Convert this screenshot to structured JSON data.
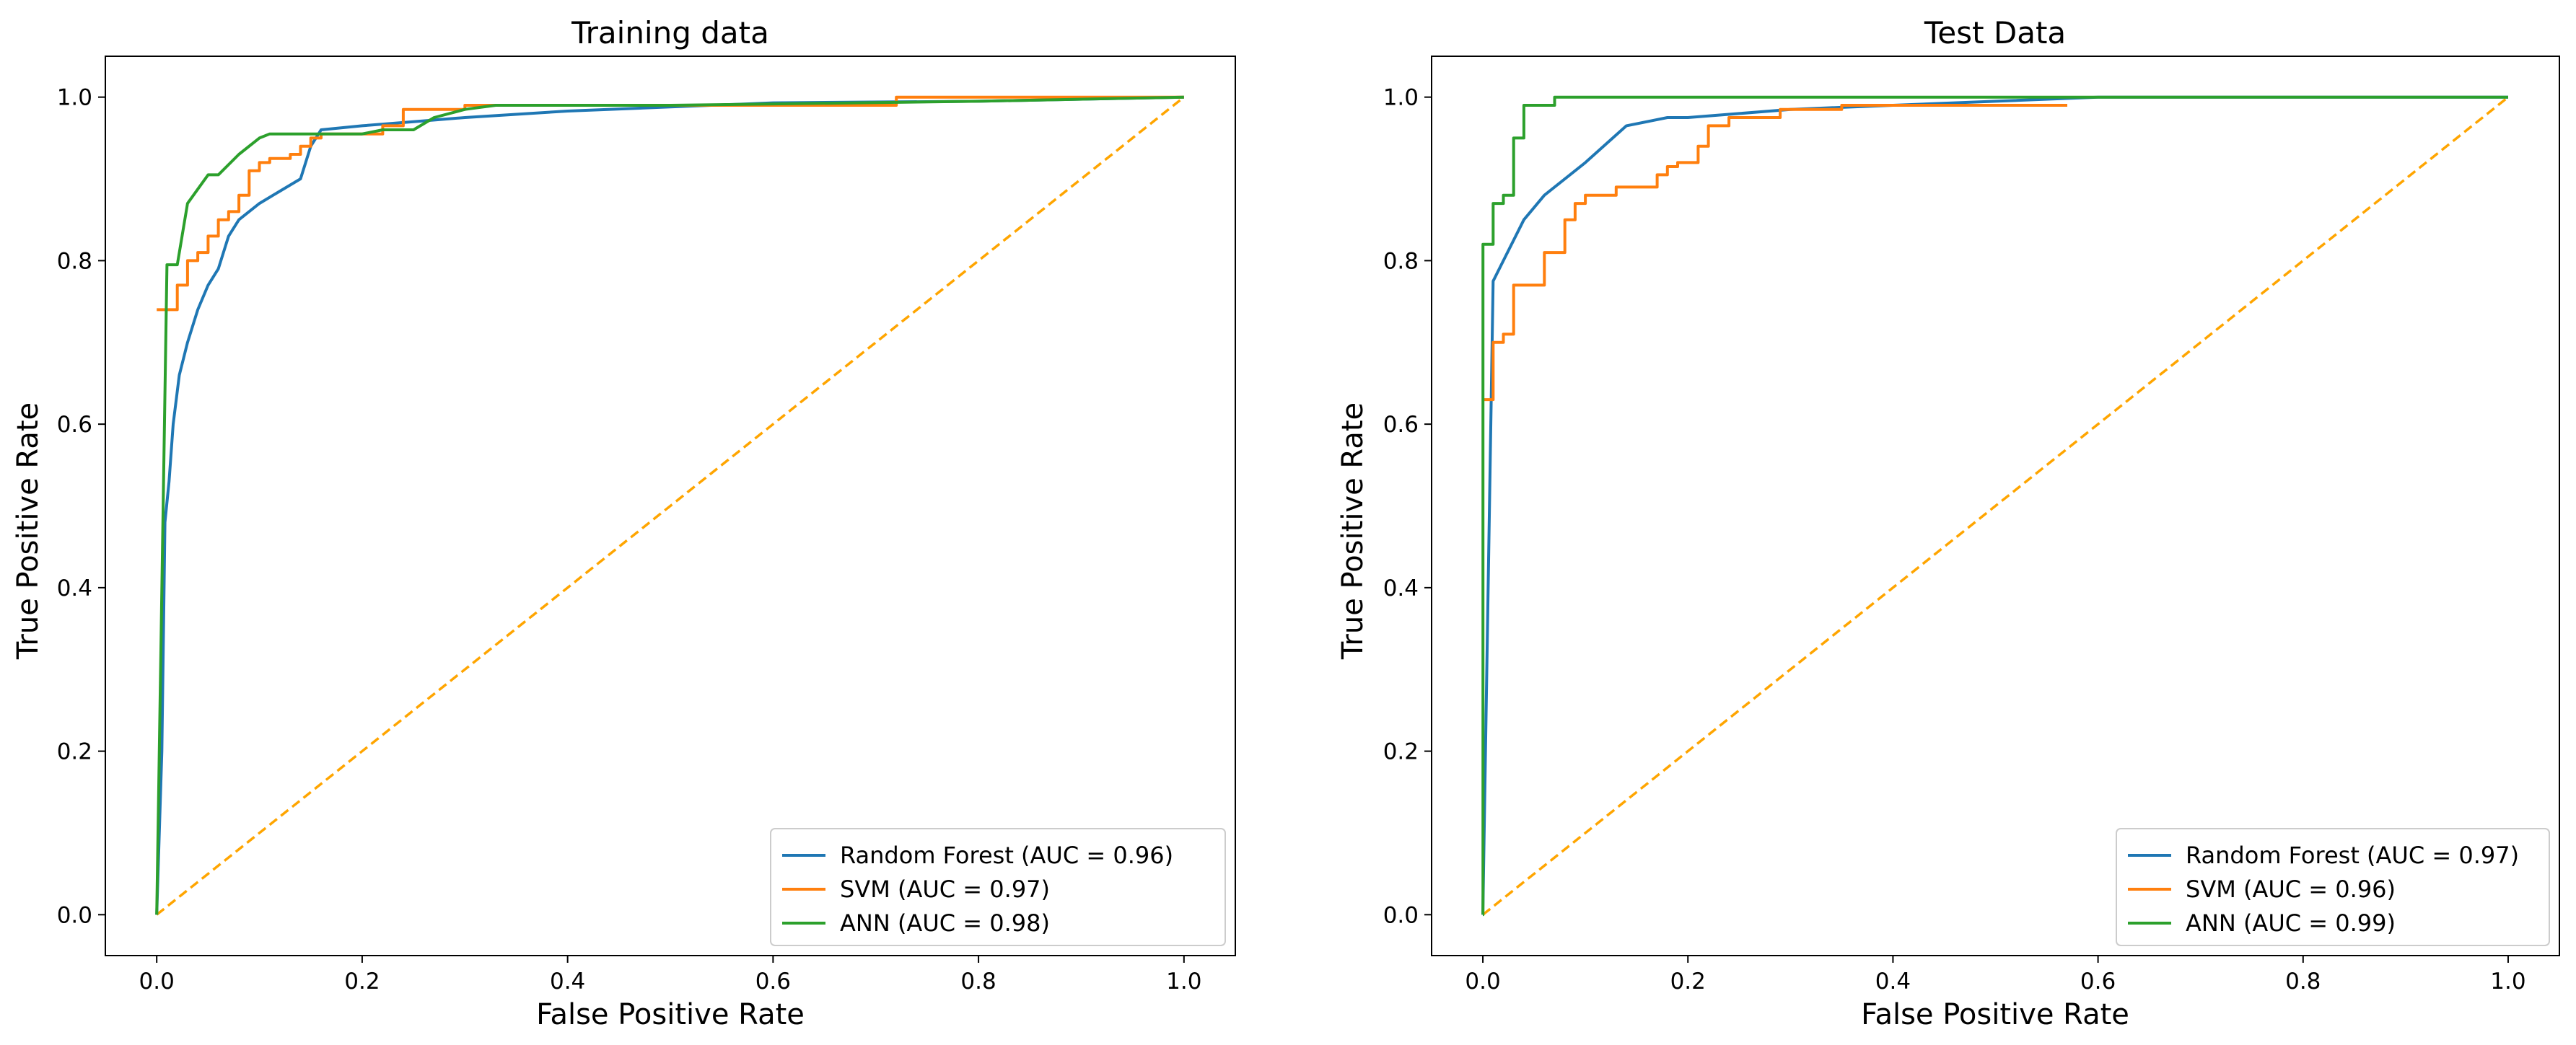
{
  "colors": {
    "random_forest": "#1f77b4",
    "svm": "#ff7f0e",
    "ann": "#2ca02c",
    "diagonal": "#ffa500",
    "axes": "#000000",
    "legend_border": "#cccccc"
  },
  "chart_data": [
    {
      "type": "line",
      "title": "Training data",
      "xlabel": "False Positive Rate",
      "ylabel": "True Positive Rate",
      "xlim": [
        -0.05,
        1.05
      ],
      "ylim": [
        -0.05,
        1.05
      ],
      "xticks": [
        "0.0",
        "0.2",
        "0.4",
        "0.6",
        "0.8",
        "1.0"
      ],
      "yticks": [
        "0.0",
        "0.2",
        "0.4",
        "0.6",
        "0.8",
        "1.0"
      ],
      "legend_position": "lower-right",
      "diagonal": {
        "style": "dashed",
        "x": [
          0,
          1
        ],
        "y": [
          0,
          1
        ]
      },
      "series": [
        {
          "name": "Random Forest (AUC = 0.96)",
          "color_key": "random_forest",
          "step": false,
          "x": [
            0,
            0.005,
            0.008,
            0.012,
            0.016,
            0.022,
            0.03,
            0.04,
            0.05,
            0.06,
            0.07,
            0.08,
            0.1,
            0.12,
            0.14,
            0.15,
            0.16,
            0.2,
            0.25,
            0.3,
            0.4,
            0.5,
            0.6,
            0.8,
            1.0
          ],
          "y": [
            0,
            0.2,
            0.48,
            0.53,
            0.6,
            0.66,
            0.7,
            0.74,
            0.77,
            0.79,
            0.83,
            0.85,
            0.87,
            0.885,
            0.9,
            0.94,
            0.96,
            0.965,
            0.97,
            0.975,
            0.983,
            0.988,
            0.993,
            0.995,
            1.0
          ]
        },
        {
          "name": "SVM (AUC = 0.97)",
          "color_key": "svm",
          "step": true,
          "x": [
            0,
            0.01,
            0.02,
            0.03,
            0.04,
            0.05,
            0.06,
            0.07,
            0.08,
            0.09,
            0.1,
            0.11,
            0.13,
            0.14,
            0.15,
            0.16,
            0.22,
            0.24,
            0.28,
            0.3,
            0.52,
            0.58,
            0.72,
            0.78,
            1.0
          ],
          "y": [
            0.74,
            0.74,
            0.77,
            0.8,
            0.81,
            0.83,
            0.85,
            0.86,
            0.88,
            0.91,
            0.92,
            0.925,
            0.93,
            0.94,
            0.95,
            0.955,
            0.965,
            0.985,
            0.985,
            0.99,
            0.99,
            0.99,
            1.0,
            1.0,
            1.0
          ]
        },
        {
          "name": "ANN (AUC = 0.98)",
          "color_key": "ann",
          "step": false,
          "x": [
            0,
            0.01,
            0.02,
            0.03,
            0.05,
            0.06,
            0.08,
            0.1,
            0.11,
            0.15,
            0.2,
            0.22,
            0.25,
            0.27,
            0.3,
            0.33,
            0.5,
            0.8,
            1.0
          ],
          "y": [
            0,
            0.795,
            0.795,
            0.87,
            0.905,
            0.905,
            0.93,
            0.95,
            0.955,
            0.955,
            0.955,
            0.96,
            0.96,
            0.975,
            0.985,
            0.99,
            0.99,
            0.995,
            1.0
          ]
        }
      ]
    },
    {
      "type": "line",
      "title": "Test Data",
      "xlabel": "False Positive Rate",
      "ylabel": "True Positive Rate",
      "xlim": [
        -0.05,
        1.05
      ],
      "ylim": [
        -0.05,
        1.05
      ],
      "xticks": [
        "0.0",
        "0.2",
        "0.4",
        "0.6",
        "0.8",
        "1.0"
      ],
      "yticks": [
        "0.0",
        "0.2",
        "0.4",
        "0.6",
        "0.8",
        "1.0"
      ],
      "legend_position": "lower-right",
      "diagonal": {
        "style": "dashed",
        "x": [
          0,
          1
        ],
        "y": [
          0,
          1
        ]
      },
      "series": [
        {
          "name": "Random Forest (AUC = 0.97)",
          "color_key": "random_forest",
          "step": false,
          "x": [
            0,
            0.01,
            0.02,
            0.04,
            0.06,
            0.1,
            0.14,
            0.18,
            0.2,
            0.25,
            0.3,
            0.4,
            0.5,
            0.6,
            1.0
          ],
          "y": [
            0,
            0.775,
            0.8,
            0.85,
            0.88,
            0.92,
            0.965,
            0.975,
            0.975,
            0.98,
            0.985,
            0.99,
            0.995,
            1.0,
            1.0
          ]
        },
        {
          "name": "SVM (AUC = 0.96)",
          "color_key": "svm",
          "step": true,
          "x": [
            0,
            0.01,
            0.02,
            0.03,
            0.04,
            0.06,
            0.08,
            0.09,
            0.1,
            0.11,
            0.13,
            0.17,
            0.18,
            0.19,
            0.21,
            0.22,
            0.24,
            0.26,
            0.29,
            0.35,
            0.57
          ],
          "y": [
            0.63,
            0.7,
            0.71,
            0.77,
            0.77,
            0.81,
            0.85,
            0.87,
            0.88,
            0.88,
            0.89,
            0.905,
            0.915,
            0.92,
            0.94,
            0.965,
            0.975,
            0.975,
            0.985,
            0.99,
            0.99
          ]
        },
        {
          "name": "ANN (AUC = 0.99)",
          "color_key": "ann",
          "step": true,
          "x": [
            0,
            0.0001,
            0.01,
            0.02,
            0.03,
            0.04,
            0.05,
            0.06,
            0.07,
            0.2,
            0.6,
            1.0
          ],
          "y": [
            0,
            0.82,
            0.87,
            0.88,
            0.95,
            0.99,
            0.99,
            0.99,
            1.0,
            1.0,
            1.0,
            1.0
          ]
        }
      ]
    }
  ]
}
